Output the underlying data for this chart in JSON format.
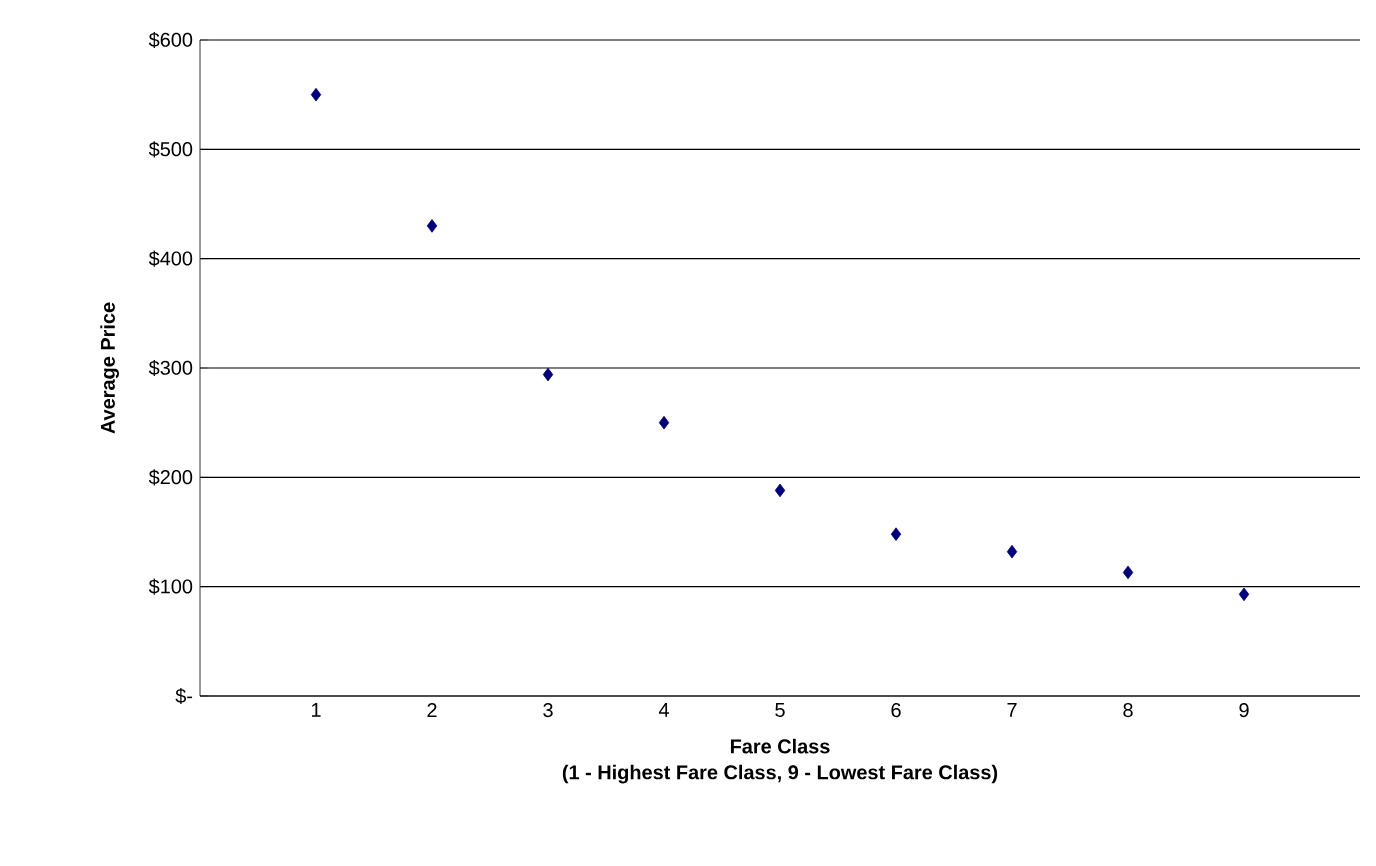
{
  "chart_data": {
    "type": "scatter",
    "xlabel": "Fare Class\n(1 - Highest Fare Class, 9 - Lowest Fare Class)",
    "ylabel": "Average Price",
    "x": [
      1,
      2,
      3,
      4,
      5,
      6,
      7,
      8,
      9
    ],
    "values": [
      550,
      430,
      294,
      250,
      188,
      148,
      132,
      113,
      93
    ],
    "color": "#000080",
    "marker": "diamond",
    "xlim": [
      0,
      10
    ],
    "xticks": [
      1,
      2,
      3,
      4,
      5,
      6,
      7,
      8,
      9
    ],
    "ylim": [
      0,
      600
    ],
    "yticks": [
      {
        "value": 0,
        "label": "$-"
      },
      {
        "value": 100,
        "label": "$100"
      },
      {
        "value": 200,
        "label": "$200"
      },
      {
        "value": 300,
        "label": "$300"
      },
      {
        "value": 400,
        "label": "$400"
      },
      {
        "value": 500,
        "label": "$500"
      },
      {
        "value": 600,
        "label": "$600"
      }
    ],
    "grid": "y"
  }
}
